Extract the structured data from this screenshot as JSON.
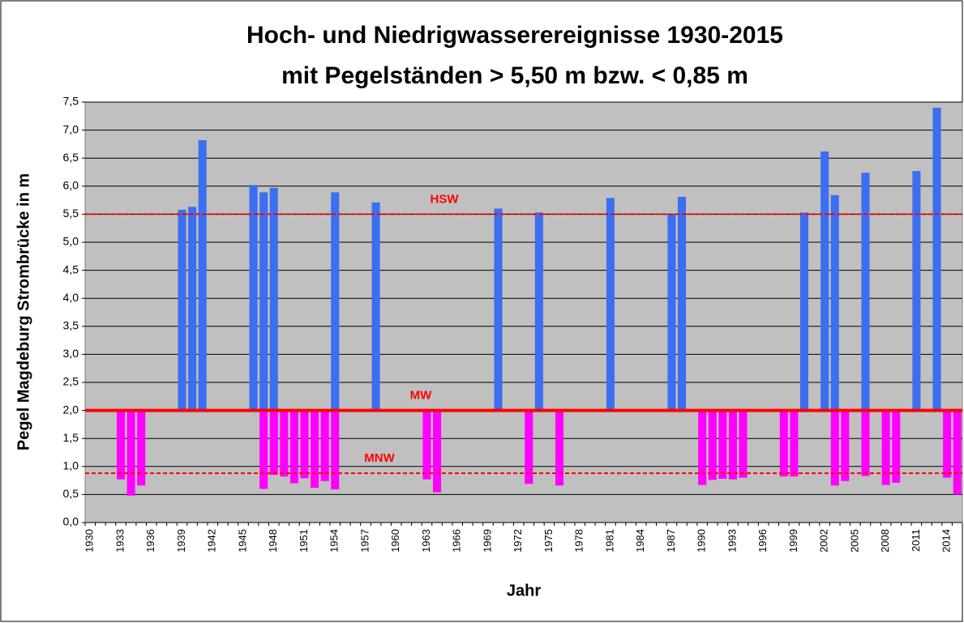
{
  "chart_data": {
    "type": "bar",
    "title": [
      "Hoch- und Niedrigwasserereignisse 1930-2015",
      "mit Pegelständen > 5,50 m bzw. < 0,85 m"
    ],
    "x_label": "Jahr",
    "y_label": "Pegel Magdeburg Strombrücke in m",
    "categories": [
      "1930",
      null,
      null,
      "1933",
      null,
      null,
      "1936",
      null,
      null,
      "1939",
      null,
      null,
      "1942",
      null,
      null,
      "1945",
      null,
      null,
      "1948",
      null,
      null,
      "1951",
      null,
      null,
      "1954",
      null,
      null,
      "1957",
      null,
      null,
      "1960",
      null,
      null,
      "1963",
      null,
      null,
      "1966",
      null,
      null,
      "1969",
      null,
      null,
      "1972",
      null,
      null,
      "1975",
      null,
      null,
      "1978",
      null,
      null,
      "1981",
      null,
      null,
      "1984",
      null,
      null,
      "1987",
      null,
      null,
      "1990",
      null,
      null,
      "1993",
      null,
      null,
      "1996",
      null,
      null,
      "1999",
      null,
      null,
      "2002",
      null,
      null,
      "2005",
      null,
      null,
      "2008",
      null,
      null,
      "2011",
      null,
      null,
      "2014",
      null
    ],
    "series": [
      {
        "color": "#3c6ef0",
        "values": [
          null,
          null,
          null,
          null,
          null,
          null,
          null,
          null,
          null,
          5.58,
          5.63,
          6.82,
          null,
          null,
          null,
          null,
          6.02,
          5.89,
          5.97,
          null,
          null,
          null,
          null,
          null,
          5.89,
          null,
          null,
          null,
          5.71,
          null,
          null,
          null,
          null,
          null,
          null,
          null,
          null,
          null,
          null,
          null,
          5.6,
          null,
          null,
          null,
          5.53,
          null,
          null,
          null,
          null,
          null,
          null,
          5.79,
          null,
          null,
          null,
          null,
          null,
          5.5,
          5.81,
          null,
          null,
          null,
          null,
          null,
          null,
          null,
          null,
          null,
          null,
          null,
          5.53,
          null,
          6.62,
          5.84,
          null,
          null,
          6.24,
          null,
          null,
          null,
          null,
          6.27,
          null,
          7.4,
          null,
          null
        ]
      },
      {
        "color": "#ff00ff",
        "values": [
          null,
          null,
          null,
          0.77,
          0.48,
          0.66,
          null,
          null,
          null,
          null,
          null,
          null,
          null,
          null,
          null,
          null,
          null,
          0.6,
          0.85,
          0.82,
          0.7,
          0.79,
          0.62,
          0.74,
          0.59,
          null,
          null,
          null,
          null,
          null,
          null,
          null,
          null,
          0.77,
          0.54,
          null,
          null,
          null,
          null,
          null,
          null,
          null,
          null,
          0.69,
          null,
          null,
          0.66,
          null,
          null,
          null,
          null,
          null,
          null,
          null,
          null,
          null,
          null,
          null,
          null,
          null,
          0.67,
          0.76,
          0.78,
          0.77,
          0.8,
          null,
          null,
          null,
          0.82,
          0.82,
          null,
          null,
          null,
          0.66,
          0.74,
          null,
          0.83,
          null,
          0.67,
          0.71,
          null,
          null,
          null,
          null,
          0.8,
          0.5
        ]
      }
    ],
    "reference_lines": [
      {
        "label": "HSW",
        "value": 5.5,
        "color": "#ff0000",
        "style": "dashed"
      },
      {
        "label": "MW",
        "value": 2.0,
        "color": "#ff0000",
        "style": "solid",
        "baseline": true
      },
      {
        "label": "MNW",
        "value": 0.88,
        "color": "#ff0000",
        "style": "dashed"
      }
    ],
    "ylim": [
      0,
      7.5
    ],
    "yticks": [
      {
        "value": 0,
        "label": "0,0"
      },
      {
        "value": 0.5,
        "label": "0,5"
      },
      {
        "value": 1,
        "label": "1,0"
      },
      {
        "value": 1.5,
        "label": "1,5"
      },
      {
        "value": 2,
        "label": "2,0"
      },
      {
        "value": 2.5,
        "label": "2,5"
      },
      {
        "value": 3,
        "label": "3,0"
      },
      {
        "value": 3.5,
        "label": "3,5"
      },
      {
        "value": 4,
        "label": "4,0"
      },
      {
        "value": 4.5,
        "label": "4,5"
      },
      {
        "value": 5,
        "label": "5,0"
      },
      {
        "value": 5.5,
        "label": "5,5"
      },
      {
        "value": 6,
        "label": "6,0"
      },
      {
        "value": 6.5,
        "label": "6,5"
      },
      {
        "value": 7,
        "label": "7,0"
      },
      {
        "value": 7.5,
        "label": "7,5"
      }
    ],
    "grid": true,
    "background": "#c0c0c0"
  }
}
